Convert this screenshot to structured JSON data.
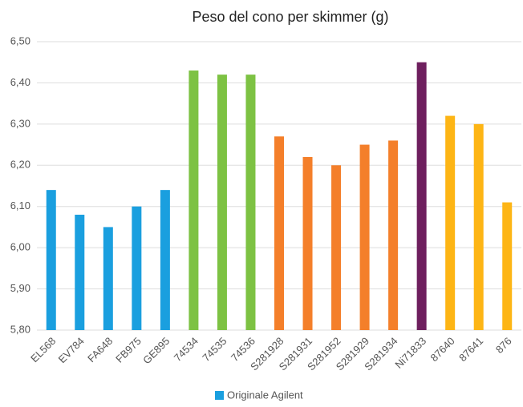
{
  "chart_data": {
    "type": "bar",
    "title": "Peso del cono per skimmer (g)",
    "categories": [
      "EL568",
      "EV784",
      "FA648",
      "FB975",
      "GE895",
      "74534",
      "74535",
      "74536",
      "S281928",
      "S281931",
      "S281952",
      "S281929",
      "S281934",
      "Ni71833",
      "87640",
      "87641",
      "876"
    ],
    "series": [
      {
        "name": "Originale Agilent",
        "color": "#1a9fdf",
        "values": [
          6.14,
          6.08,
          6.05,
          6.1,
          6.14,
          6.43,
          6.42,
          6.42,
          6.27,
          6.22,
          6.2,
          6.25,
          6.26,
          6.45,
          6.32,
          6.3,
          6.11
        ]
      }
    ],
    "bar_colors": [
      "#1a9fdf",
      "#1a9fdf",
      "#1a9fdf",
      "#1a9fdf",
      "#1a9fdf",
      "#7dc243",
      "#7dc243",
      "#7dc243",
      "#f47f2a",
      "#f47f2a",
      "#f47f2a",
      "#f47f2a",
      "#f47f2a",
      "#6e1f5e",
      "#fdb515",
      "#fdb515",
      "#fdb515"
    ],
    "ylim": [
      5.8,
      6.5
    ],
    "yticks": [
      {
        "value": 5.8,
        "label": "5,80"
      },
      {
        "value": 5.9,
        "label": "5,90"
      },
      {
        "value": 6.0,
        "label": "6,00"
      },
      {
        "value": 6.1,
        "label": "6,10"
      },
      {
        "value": 6.2,
        "label": "6,20"
      },
      {
        "value": 6.3,
        "label": "6,30"
      },
      {
        "value": 6.4,
        "label": "6,40"
      },
      {
        "value": 6.5,
        "label": "6,50"
      }
    ],
    "grid": true,
    "legend": "bottom"
  }
}
